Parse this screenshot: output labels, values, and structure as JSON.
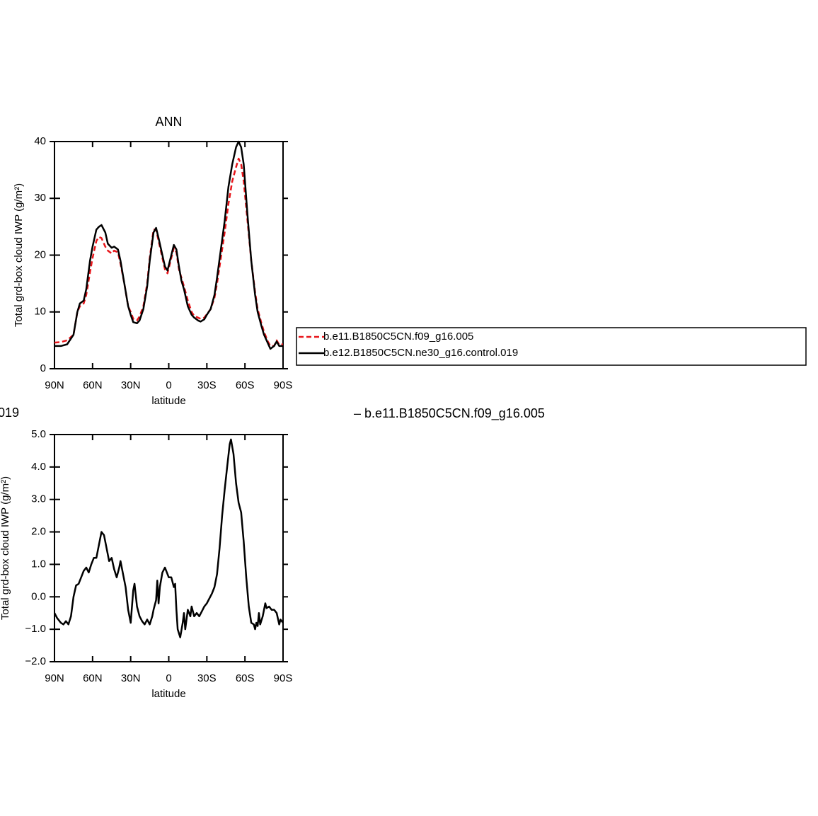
{
  "chart_data": [
    {
      "type": "line",
      "title": "ANN",
      "ylabel": "Total grd-box cloud IWP (g/m²)",
      "xlabel": "latitude",
      "xlim": [
        90,
        -90
      ],
      "xticks": [
        {
          "value": 90,
          "label": "90N"
        },
        {
          "value": 60,
          "label": "60N"
        },
        {
          "value": 30,
          "label": "30N"
        },
        0,
        {
          "value": -30,
          "label": "30S"
        },
        {
          "value": -60,
          "label": "60S"
        },
        {
          "value": -90,
          "label": "90S"
        }
      ],
      "ylim": [
        0,
        40
      ],
      "yticks": [
        0,
        10,
        20,
        30,
        40
      ],
      "x": [
        90,
        85,
        80,
        75,
        72,
        70,
        67,
        65,
        62,
        60,
        57,
        55,
        53,
        50,
        48,
        45,
        43,
        40,
        38,
        35,
        32,
        30,
        28,
        25,
        23,
        20,
        17,
        15,
        12,
        10,
        8,
        5,
        3,
        1,
        -2,
        -4,
        -6,
        -8,
        -10,
        -12,
        -15,
        -18,
        -20,
        -23,
        -25,
        -28,
        -30,
        -33,
        -36,
        -38,
        -41,
        -44,
        -47,
        -50,
        -53,
        -55,
        -57,
        -59,
        -62,
        -65,
        -68,
        -70,
        -73,
        -75,
        -78,
        -80,
        -83,
        -85,
        -87,
        -90
      ],
      "series": [
        {
          "name": "b.e11.B1850C5CN.f09_g16.005",
          "color": "#e8161b",
          "dash": true,
          "values": [
            4.6,
            4.7,
            5,
            6,
            10,
            11,
            11.5,
            13,
            17,
            19.5,
            22.5,
            23.2,
            23,
            21.5,
            20.8,
            20.3,
            20.8,
            20.5,
            18.5,
            15,
            11,
            10,
            8.8,
            8.5,
            9.2,
            11,
            15,
            19.5,
            24.5,
            24.5,
            22.5,
            19.5,
            17.5,
            16.8,
            19.5,
            21.3,
            20.5,
            17.5,
            16,
            14.5,
            12,
            10,
            9.3,
            9,
            8.8,
            9,
            9.6,
            10.5,
            12.5,
            15,
            19.5,
            24,
            29,
            33,
            35.5,
            37,
            36,
            33,
            26,
            19,
            13.5,
            10.5,
            8,
            6.5,
            4.8,
            4,
            4,
            5,
            4.2,
            4.3
          ]
        },
        {
          "name": "b.e12.B1850C5CN.ne30_g16.control.019",
          "color": "#000000",
          "dash": false,
          "values": [
            4,
            4,
            4.3,
            6,
            10,
            11.5,
            12,
            14,
            19,
            21.5,
            24.5,
            25,
            25.3,
            24,
            22,
            21.3,
            21.5,
            21,
            19,
            15,
            11,
            9.5,
            8.2,
            8,
            8.5,
            10.5,
            14.5,
            19,
            24,
            24.8,
            23,
            20,
            18,
            17.3,
            20,
            21.8,
            21,
            18,
            15.5,
            14,
            11,
            9.5,
            9,
            8.5,
            8.3,
            8.7,
            9.5,
            10.5,
            13,
            16,
            21,
            26,
            32,
            36,
            39,
            40,
            39,
            36,
            27,
            19,
            13,
            10,
            7.5,
            6,
            4.5,
            3.5,
            4,
            4.8,
            4,
            4
          ]
        }
      ]
    },
    {
      "type": "line",
      "title_left": "019",
      "title_right": "– b.e11.B1850C5CN.f09_g16.005",
      "ylabel": "Total grd-box cloud IWP (g/m²)",
      "xlabel": "latitude",
      "xlim": [
        90,
        -90
      ],
      "xticks": [
        {
          "value": 90,
          "label": "90N"
        },
        {
          "value": 60,
          "label": "60N"
        },
        {
          "value": 30,
          "label": "30N"
        },
        0,
        {
          "value": -30,
          "label": "30S"
        },
        {
          "value": -60,
          "label": "60S"
        },
        {
          "value": -90,
          "label": "90S"
        }
      ],
      "ylim": [
        -2,
        5
      ],
      "yticks": [
        {
          "value": -2,
          "label": "−2.0"
        },
        {
          "value": -1,
          "label": "−1.0"
        },
        {
          "value": 0,
          "label": "0.0"
        },
        {
          "value": 1,
          "label": "1.0"
        },
        {
          "value": 2,
          "label": "2.0"
        },
        {
          "value": 3,
          "label": "3.0"
        },
        {
          "value": 4,
          "label": "4.0"
        },
        {
          "value": 5,
          "label": "5.0"
        }
      ],
      "x": [
        90,
        88,
        85,
        83,
        81,
        79,
        77,
        75,
        73,
        71,
        69,
        67,
        65,
        63,
        61,
        59,
        57,
        55,
        53,
        51,
        49,
        47,
        45,
        43,
        41,
        39,
        38,
        36,
        34,
        32,
        30,
        28,
        27,
        25,
        23,
        21,
        19,
        17,
        15,
        13,
        12,
        10,
        9,
        8,
        7,
        5,
        3,
        2,
        0,
        -2,
        -4,
        -5,
        -6,
        -7,
        -9,
        -11,
        -12,
        -13,
        -15,
        -17,
        -18,
        -20,
        -22,
        -24,
        -26,
        -28,
        -30,
        -32,
        -34,
        -36,
        -38,
        -40,
        -42,
        -44,
        -46,
        -48,
        -49,
        -51,
        -53,
        -55,
        -57,
        -59,
        -61,
        -63,
        -65,
        -67,
        -68,
        -69,
        -70,
        -71,
        -72,
        -74,
        -76,
        -77,
        -79,
        -81,
        -83,
        -85,
        -87,
        -88,
        -90
      ],
      "series": [
        {
          "color": "#000000",
          "values": [
            -0.5,
            -0.65,
            -0.8,
            -0.85,
            -0.75,
            -0.85,
            -0.6,
            0,
            0.35,
            0.4,
            0.6,
            0.8,
            0.9,
            0.75,
            1.0,
            1.2,
            1.2,
            1.6,
            2.0,
            1.9,
            1.5,
            1.1,
            1.2,
            0.85,
            0.6,
            0.9,
            1.1,
            0.7,
            0.3,
            -0.4,
            -0.8,
            0.2,
            0.4,
            -0.3,
            -0.6,
            -0.75,
            -0.85,
            -0.7,
            -0.85,
            -0.6,
            -0.4,
            -0.1,
            0.5,
            -0.2,
            0.3,
            0.75,
            0.9,
            0.8,
            0.6,
            0.6,
            0.3,
            0.4,
            -0.4,
            -1.0,
            -1.25,
            -0.8,
            -0.5,
            -1.0,
            -0.4,
            -0.6,
            -0.3,
            -0.6,
            -0.5,
            -0.6,
            -0.45,
            -0.3,
            -0.2,
            -0.05,
            0.1,
            0.3,
            0.7,
            1.5,
            2.5,
            3.3,
            4.0,
            4.7,
            4.85,
            4.4,
            3.5,
            2.9,
            2.6,
            1.7,
            0.6,
            -0.3,
            -0.8,
            -0.85,
            -1.0,
            -0.8,
            -0.9,
            -0.5,
            -0.85,
            -0.6,
            -0.2,
            -0.35,
            -0.3,
            -0.4,
            -0.4,
            -0.5,
            -0.85,
            -0.7,
            -0.8
          ]
        }
      ]
    }
  ]
}
